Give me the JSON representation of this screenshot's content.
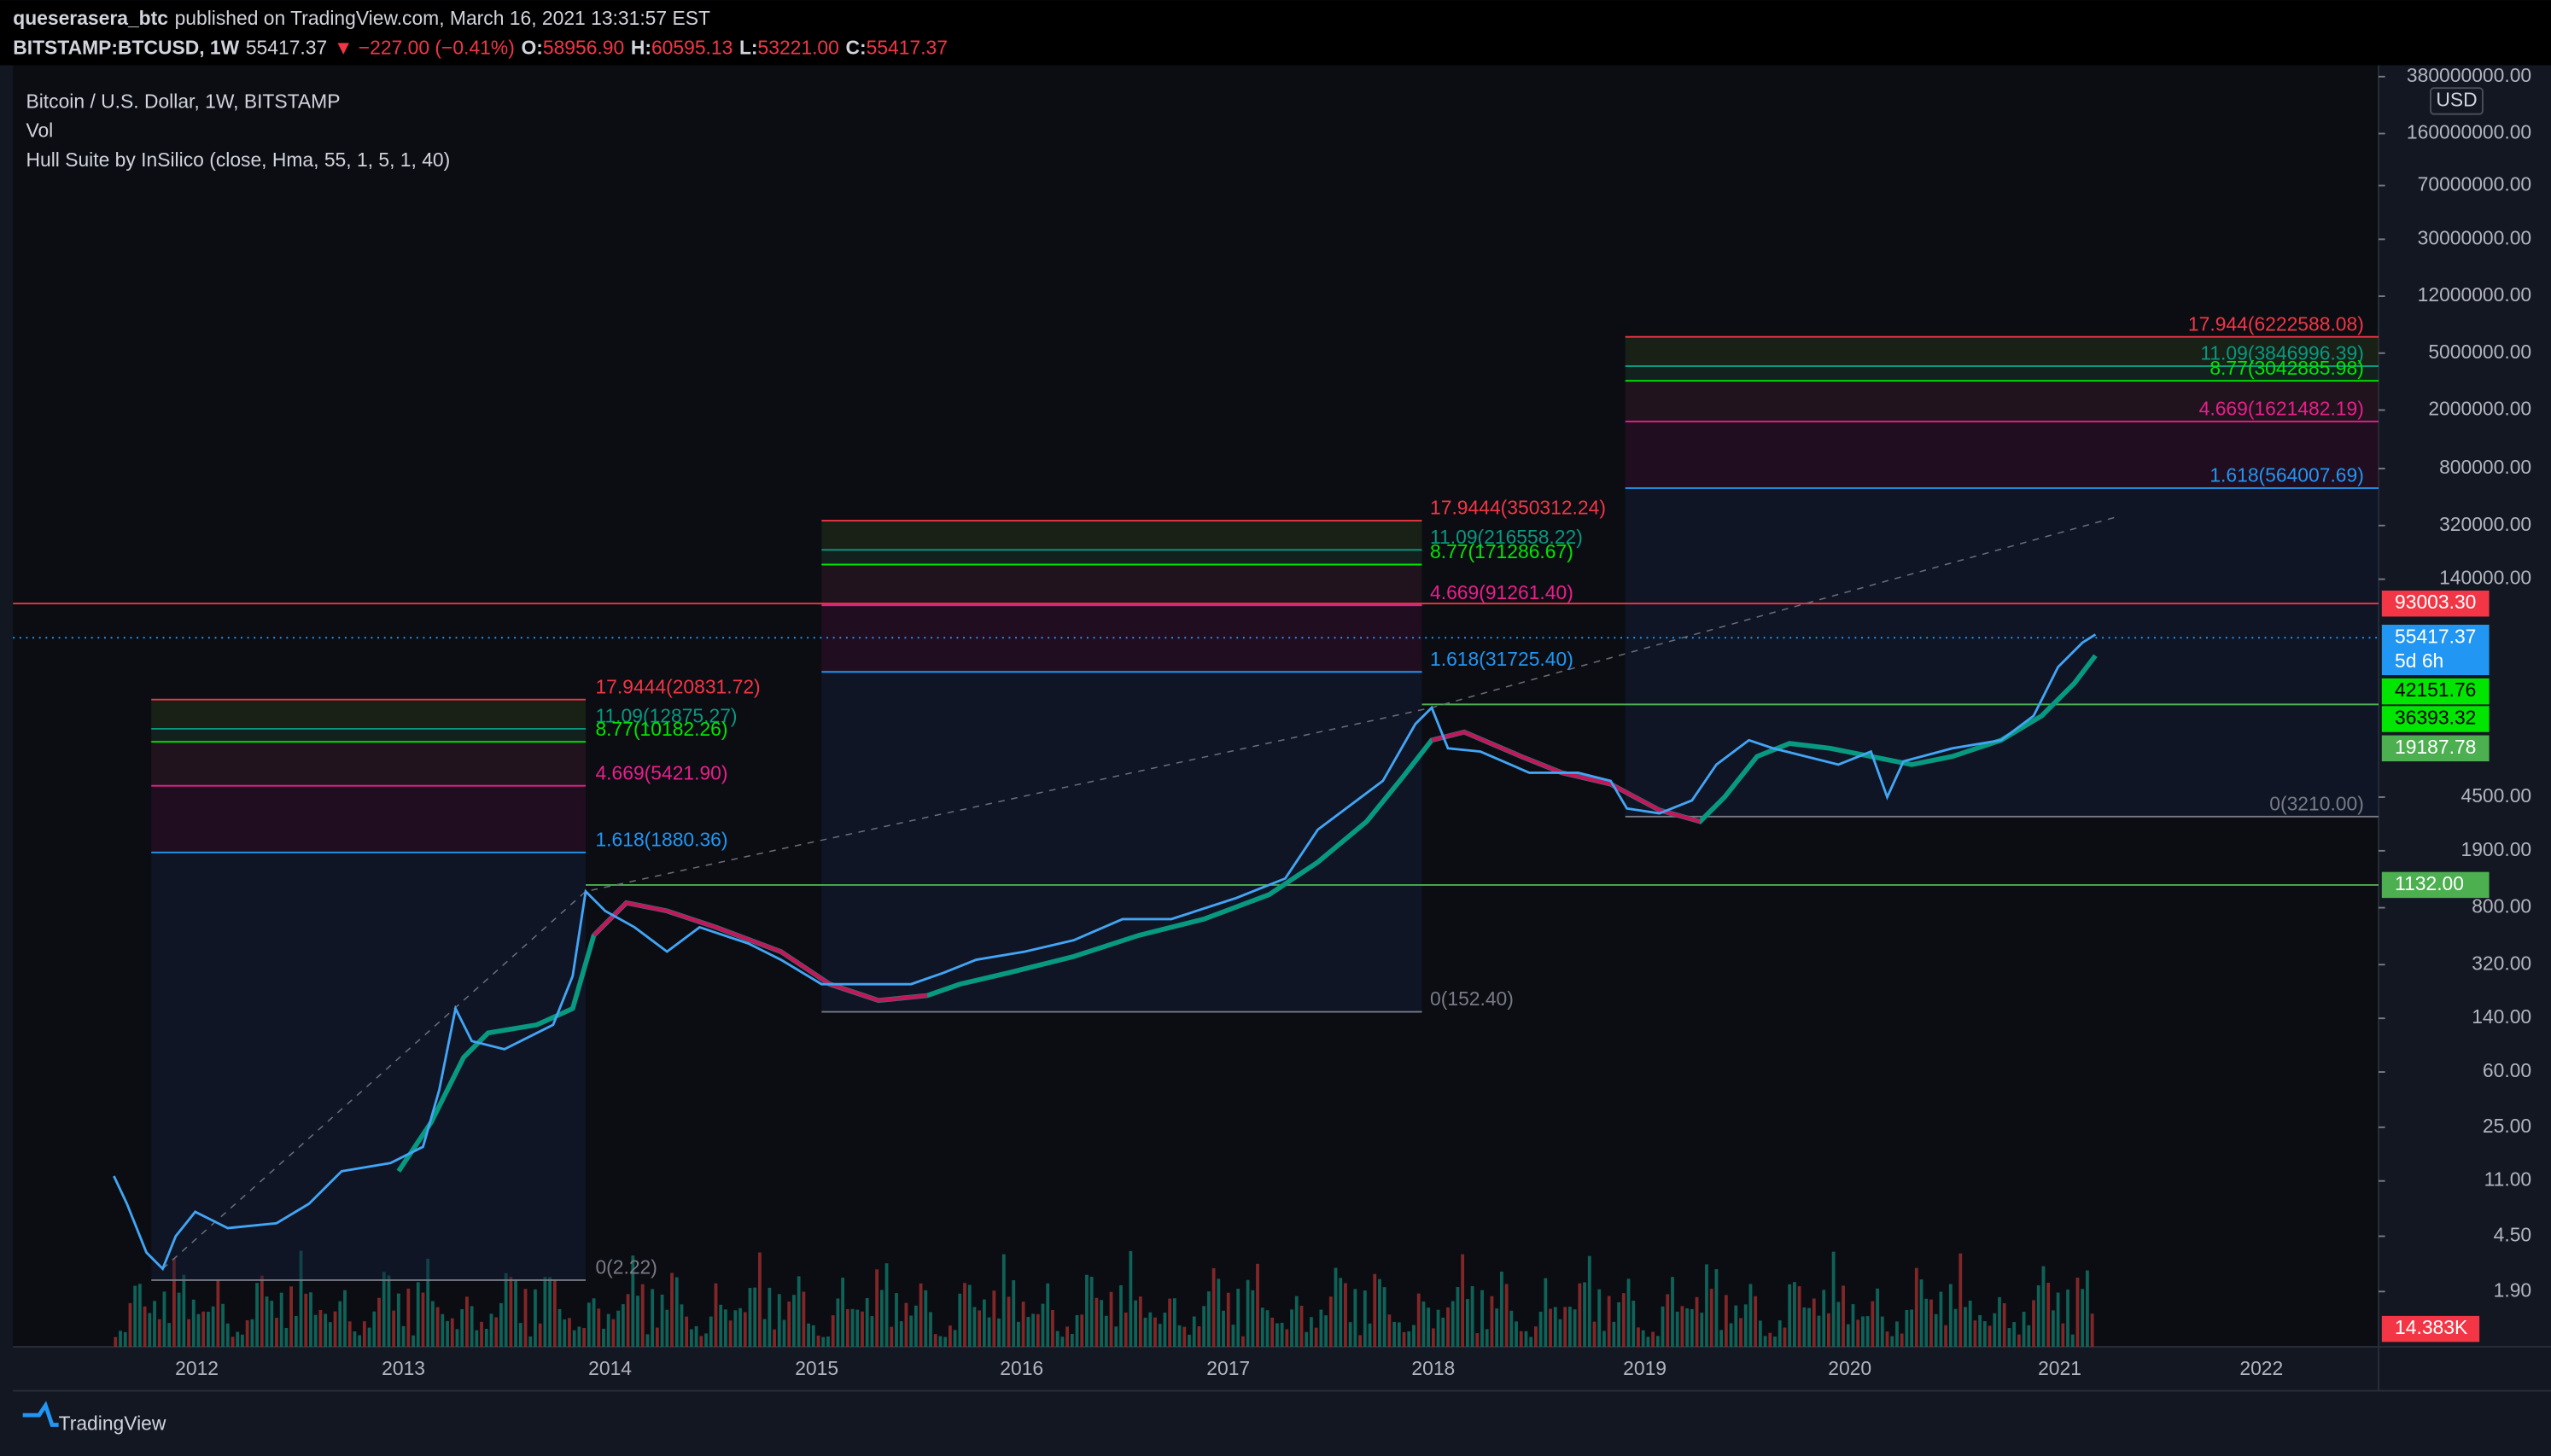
{
  "header": {
    "author": "queserasera_btc",
    "published": "published on TradingView.com, March 16, 2021 13:31:57 EST",
    "symbol": "BITSTAMP:BTCUSD, 1W",
    "last": "55417.37",
    "change": "▼ −227.00 (−0.41%)",
    "ohlc": [
      {
        "label": "O:",
        "value": "58956.90"
      },
      {
        "label": "H:",
        "value": "60595.13"
      },
      {
        "label": "L:",
        "value": "53221.00"
      },
      {
        "label": "C:",
        "value": "55417.37"
      }
    ]
  },
  "legend": [
    "Bitcoin / U.S. Dollar, 1W, BITSTAMP",
    "Vol",
    "Hull Suite by InSilico (close, Hma, 55, 1, 5, 1, 40)"
  ],
  "price_axis": {
    "currency": "USD",
    "labels": [
      "380000000.00",
      "160000000.00",
      "70000000.00",
      "30000000.00",
      "12000000.00",
      "5000000.00",
      "2000000.00",
      "800000.00",
      "320000.00",
      "140000.00",
      "4500.00",
      "1900.00",
      "800.00",
      "320.00",
      "140.00",
      "60.00",
      "25.00",
      "11.00",
      "4.50",
      "1.90"
    ]
  },
  "price_tags": [
    "93003.30",
    "55417.37",
    "42151.76",
    "36393.32",
    "19187.78",
    "1132.00",
    "14.383K"
  ],
  "countdown": "5d 6h",
  "time_axis": [
    "2012",
    "2013",
    "2014",
    "2015",
    "2016",
    "2017",
    "2018",
    "2019",
    "2020",
    "2021",
    "2022"
  ],
  "fib_levels": [
    [
      "17.9444(20831.72)",
      "11.09(12875.27)",
      "8.77(10182.26)",
      "4.669(5421.90)",
      "1.618(1880.36)",
      "0(2.22)"
    ],
    [
      "17.9444(350312.24)",
      "11.09(216558.22)",
      "8.77(171286.67)",
      "4.669(91261.40)",
      "1.618(31725.40)",
      "0(152.40)"
    ],
    [
      "17.944(6222588.08)",
      "11.09(3846996.39)",
      "8.77(3042885.98)",
      "4.669(1621482.19)",
      "1.618(564007.69)",
      "0(3210.00)"
    ]
  ],
  "footer": "TradingView"
}
